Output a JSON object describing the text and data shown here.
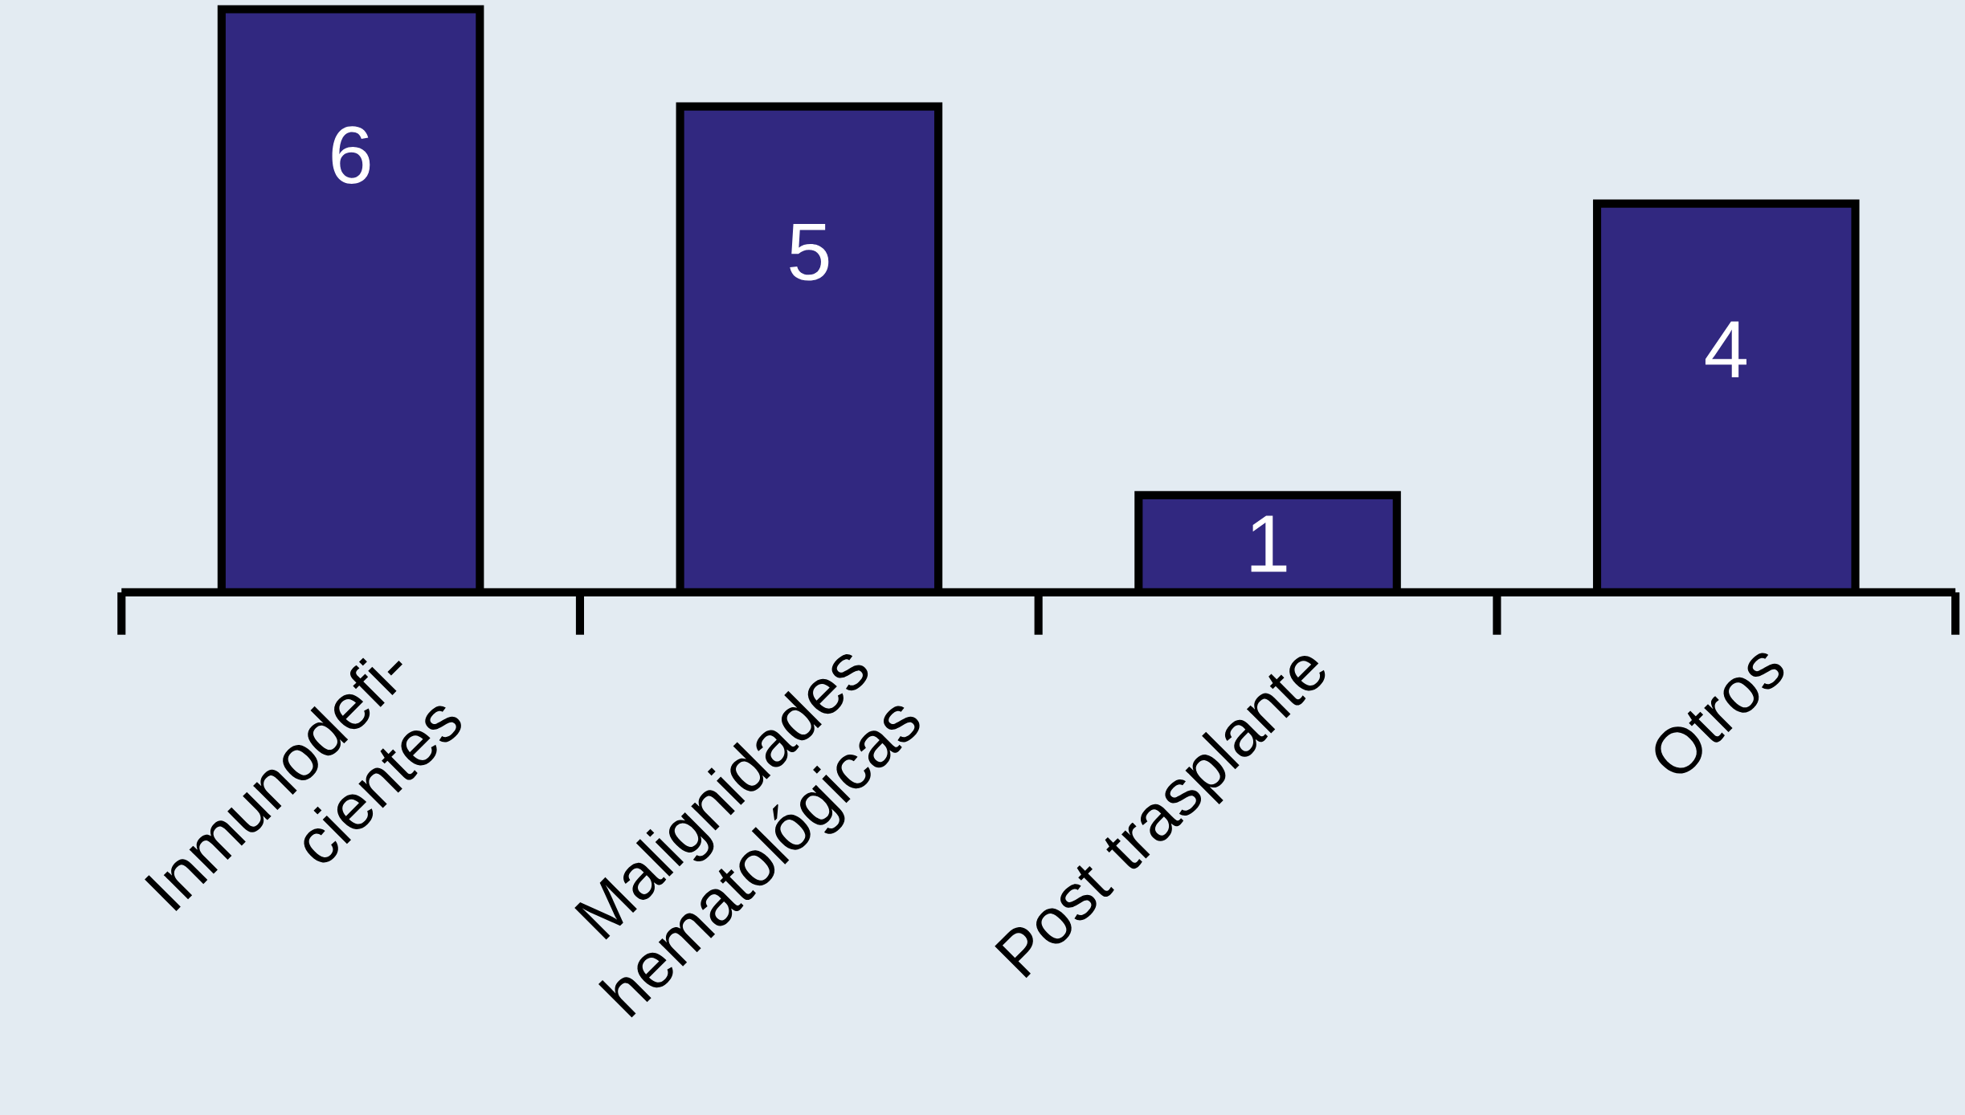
{
  "chart_data": {
    "type": "bar",
    "categories": [
      "Inmunodefi- cientes",
      "Malignidades hematológicas",
      "Post trasplante",
      "Otros"
    ],
    "values": [
      6,
      5,
      1,
      4
    ],
    "color": "#312880",
    "data_labels": true
  }
}
